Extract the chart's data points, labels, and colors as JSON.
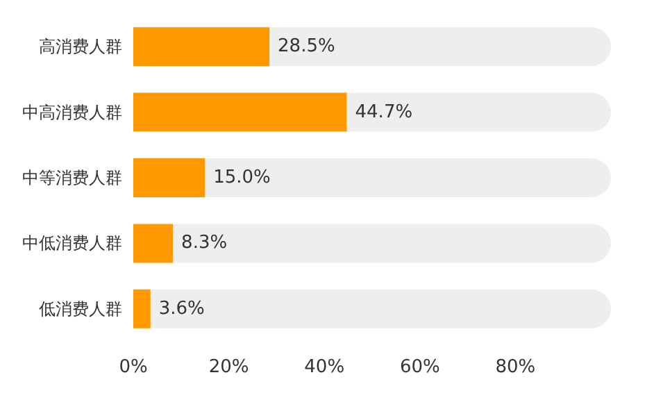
{
  "chart_data": {
    "type": "bar",
    "orientation": "horizontal",
    "categories": [
      "高消费人群",
      "中高消费人群",
      "中等消费人群",
      "中低消费人群",
      "低消费人群"
    ],
    "values": [
      28.5,
      44.7,
      15.0,
      8.3,
      3.6
    ],
    "value_labels": [
      "28.5%",
      "44.7%",
      "15.0%",
      "8.3%",
      "3.6%"
    ],
    "color": "#ff9900",
    "xlim": [
      0,
      100
    ],
    "xticks": [
      {
        "value": 0,
        "label": "0%"
      },
      {
        "value": 20,
        "label": "20%"
      },
      {
        "value": 40,
        "label": "40%"
      },
      {
        "value": 60,
        "label": "60%"
      },
      {
        "value": 80,
        "label": "80%"
      }
    ],
    "grid": false
  }
}
